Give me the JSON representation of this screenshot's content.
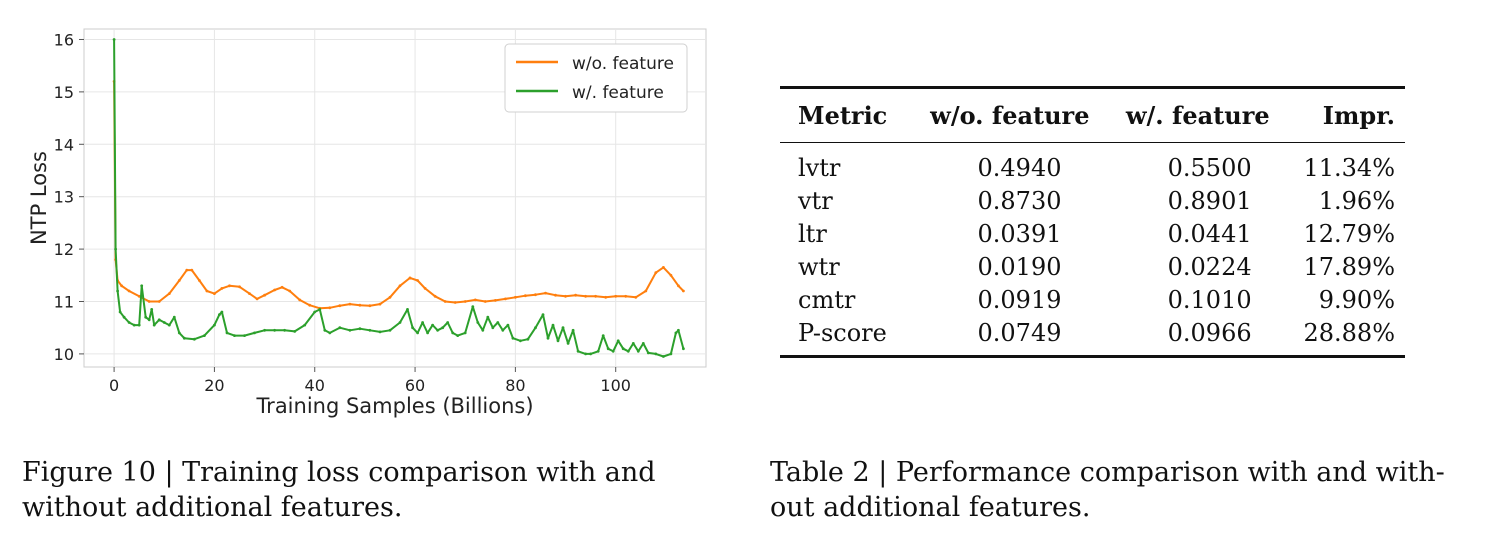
{
  "figure": {
    "caption": "Figure 10 | Training loss comparison with and without additional features."
  },
  "table": {
    "caption": "Table 2 | Performance comparison with and with-out additional features.",
    "headers": [
      "Metric",
      "w/o. feature",
      "w/. feature",
      "Impr."
    ],
    "rows": [
      [
        "lvtr",
        "0.4940",
        "0.5500",
        "11.34%"
      ],
      [
        "vtr",
        "0.8730",
        "0.8901",
        "1.96%"
      ],
      [
        "ltr",
        "0.0391",
        "0.0441",
        "12.79%"
      ],
      [
        "wtr",
        "0.0190",
        "0.0224",
        "17.89%"
      ],
      [
        "cmtr",
        "0.0919",
        "0.1010",
        "9.90%"
      ],
      [
        "P-score",
        "0.0749",
        "0.0966",
        "28.88%"
      ]
    ]
  },
  "chart_data": {
    "type": "line",
    "xlabel": "Training Samples (Billions)",
    "ylabel": "NTP Loss",
    "xlim": [
      -6,
      118
    ],
    "ylim": [
      9.75,
      16.2
    ],
    "xticks": [
      0,
      20,
      40,
      60,
      80,
      100
    ],
    "yticks": [
      10,
      11,
      12,
      13,
      14,
      15,
      16
    ],
    "grid": true,
    "legend_position": "top-right",
    "series": [
      {
        "name": "w/o. feature",
        "color": "#ff7f0e",
        "points": [
          [
            0,
            15.2
          ],
          [
            0.3,
            11.8
          ],
          [
            0.7,
            11.4
          ],
          [
            1.5,
            11.3
          ],
          [
            3,
            11.2
          ],
          [
            5,
            11.1
          ],
          [
            7,
            11.0
          ],
          [
            9,
            11.0
          ],
          [
            11,
            11.15
          ],
          [
            13,
            11.4
          ],
          [
            14.5,
            11.6
          ],
          [
            15.5,
            11.6
          ],
          [
            17,
            11.4
          ],
          [
            18.5,
            11.2
          ],
          [
            20,
            11.15
          ],
          [
            21.5,
            11.25
          ],
          [
            23,
            11.3
          ],
          [
            25,
            11.28
          ],
          [
            27,
            11.15
          ],
          [
            28.5,
            11.05
          ],
          [
            30,
            11.12
          ],
          [
            32,
            11.22
          ],
          [
            33.5,
            11.27
          ],
          [
            35,
            11.2
          ],
          [
            37,
            11.03
          ],
          [
            39,
            10.93
          ],
          [
            41,
            10.87
          ],
          [
            43,
            10.88
          ],
          [
            45,
            10.92
          ],
          [
            47,
            10.95
          ],
          [
            49,
            10.93
          ],
          [
            51,
            10.92
          ],
          [
            53,
            10.95
          ],
          [
            55,
            11.08
          ],
          [
            57,
            11.3
          ],
          [
            59,
            11.45
          ],
          [
            60.5,
            11.4
          ],
          [
            62,
            11.25
          ],
          [
            64,
            11.1
          ],
          [
            66,
            11.0
          ],
          [
            68,
            10.98
          ],
          [
            70,
            11.0
          ],
          [
            72,
            11.03
          ],
          [
            74,
            11.0
          ],
          [
            76,
            11.02
          ],
          [
            78,
            11.05
          ],
          [
            80,
            11.08
          ],
          [
            82,
            11.11
          ],
          [
            84,
            11.13
          ],
          [
            86,
            11.16
          ],
          [
            88,
            11.12
          ],
          [
            90,
            11.1
          ],
          [
            92,
            11.12
          ],
          [
            94,
            11.1
          ],
          [
            96,
            11.1
          ],
          [
            98,
            11.08
          ],
          [
            100,
            11.1
          ],
          [
            102,
            11.1
          ],
          [
            104,
            11.08
          ],
          [
            106,
            11.2
          ],
          [
            108,
            11.55
          ],
          [
            109.5,
            11.65
          ],
          [
            111,
            11.5
          ],
          [
            112.5,
            11.3
          ],
          [
            113.5,
            11.2
          ]
        ]
      },
      {
        "name": "w/. feature",
        "color": "#2ca02c",
        "points": [
          [
            0,
            16.0
          ],
          [
            0.3,
            12.0
          ],
          [
            0.7,
            11.2
          ],
          [
            1.2,
            10.8
          ],
          [
            2,
            10.7
          ],
          [
            3,
            10.6
          ],
          [
            4,
            10.55
          ],
          [
            5,
            10.55
          ],
          [
            5.5,
            11.3
          ],
          [
            6.3,
            10.7
          ],
          [
            7,
            10.65
          ],
          [
            7.5,
            10.85
          ],
          [
            8,
            10.55
          ],
          [
            9,
            10.65
          ],
          [
            10,
            10.6
          ],
          [
            11,
            10.55
          ],
          [
            12,
            10.7
          ],
          [
            13,
            10.4
          ],
          [
            14,
            10.3
          ],
          [
            16,
            10.28
          ],
          [
            18,
            10.35
          ],
          [
            20,
            10.55
          ],
          [
            21,
            10.75
          ],
          [
            21.5,
            10.8
          ],
          [
            22.5,
            10.4
          ],
          [
            24,
            10.35
          ],
          [
            26,
            10.35
          ],
          [
            28,
            10.4
          ],
          [
            30,
            10.45
          ],
          [
            32,
            10.45
          ],
          [
            34,
            10.45
          ],
          [
            36,
            10.43
          ],
          [
            38,
            10.55
          ],
          [
            40,
            10.8
          ],
          [
            41,
            10.85
          ],
          [
            42,
            10.45
          ],
          [
            43,
            10.4
          ],
          [
            45,
            10.5
          ],
          [
            47,
            10.45
          ],
          [
            49,
            10.48
          ],
          [
            51,
            10.45
          ],
          [
            53,
            10.42
          ],
          [
            55,
            10.45
          ],
          [
            57,
            10.6
          ],
          [
            58.5,
            10.85
          ],
          [
            59.5,
            10.5
          ],
          [
            60.5,
            10.4
          ],
          [
            61.5,
            10.6
          ],
          [
            62.5,
            10.4
          ],
          [
            63.5,
            10.55
          ],
          [
            64.5,
            10.45
          ],
          [
            65.5,
            10.5
          ],
          [
            66.5,
            10.6
          ],
          [
            67.5,
            10.4
          ],
          [
            68.5,
            10.35
          ],
          [
            70,
            10.4
          ],
          [
            71.5,
            10.9
          ],
          [
            72.5,
            10.6
          ],
          [
            73.5,
            10.45
          ],
          [
            74.5,
            10.7
          ],
          [
            75.5,
            10.5
          ],
          [
            76.5,
            10.6
          ],
          [
            77.5,
            10.45
          ],
          [
            78.5,
            10.55
          ],
          [
            79.5,
            10.3
          ],
          [
            81,
            10.25
          ],
          [
            82.5,
            10.28
          ],
          [
            84,
            10.5
          ],
          [
            85.5,
            10.75
          ],
          [
            86.5,
            10.3
          ],
          [
            87.5,
            10.55
          ],
          [
            88.5,
            10.25
          ],
          [
            89.5,
            10.5
          ],
          [
            90.5,
            10.2
          ],
          [
            91.5,
            10.45
          ],
          [
            92.5,
            10.05
          ],
          [
            94,
            10.0
          ],
          [
            95,
            10.0
          ],
          [
            96.5,
            10.05
          ],
          [
            97.5,
            10.35
          ],
          [
            98.5,
            10.1
          ],
          [
            99.5,
            10.05
          ],
          [
            100.5,
            10.25
          ],
          [
            101.5,
            10.1
          ],
          [
            102.5,
            10.05
          ],
          [
            103.5,
            10.2
          ],
          [
            104.5,
            10.05
          ],
          [
            105.5,
            10.2
          ],
          [
            106.5,
            10.02
          ],
          [
            108,
            10.0
          ],
          [
            109.5,
            9.95
          ],
          [
            111,
            10.0
          ],
          [
            112,
            10.4
          ],
          [
            112.5,
            10.45
          ],
          [
            113.5,
            10.1
          ]
        ]
      }
    ]
  }
}
